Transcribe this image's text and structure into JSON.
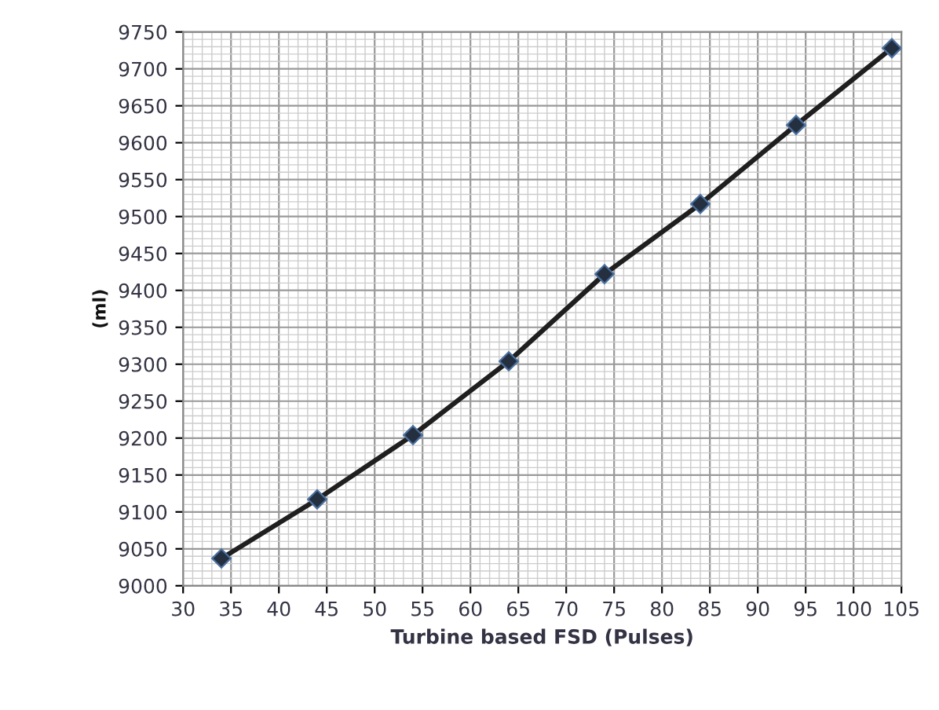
{
  "chart_data": {
    "type": "line",
    "xlabel": "Turbine based FSD (Pulses)",
    "ylabel": "(ml)",
    "x": [
      34,
      44,
      54,
      64,
      74,
      84,
      94,
      104
    ],
    "series": [
      {
        "color": "#1f1f1f",
        "values": [
          9037,
          9117,
          9204,
          9304,
          9422,
          9517,
          9624,
          9728
        ]
      }
    ],
    "xlim": [
      30,
      105
    ],
    "xticks": [
      30,
      35,
      40,
      45,
      50,
      55,
      60,
      65,
      70,
      75,
      80,
      85,
      90,
      95,
      100,
      105
    ],
    "ylim": [
      9000,
      9750
    ],
    "yticks": [
      9000,
      9050,
      9100,
      9150,
      9200,
      9250,
      9300,
      9350,
      9400,
      9450,
      9500,
      9550,
      9600,
      9650,
      9700,
      9750
    ],
    "grid": true,
    "marker": "diamond",
    "line_style": "solid",
    "legend": false
  }
}
